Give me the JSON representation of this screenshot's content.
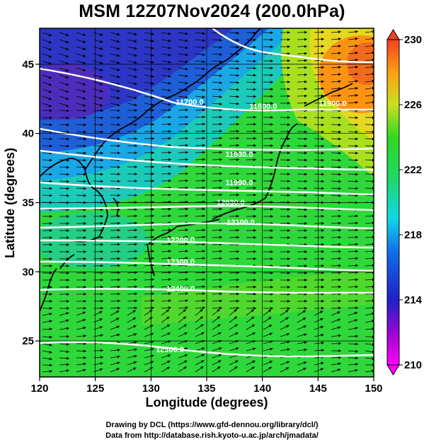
{
  "title": "MSM 12Z07Nov2024 (200.0hPa)",
  "xaxis": {
    "label": "Longitude (degrees)",
    "ticks": [
      120,
      125,
      130,
      135,
      140,
      145,
      150
    ],
    "range": [
      120,
      150
    ]
  },
  "yaxis": {
    "label": "Latitude  (degrees)",
    "ticks": [
      25,
      30,
      35,
      40,
      45
    ],
    "range": [
      22.4,
      47.6
    ]
  },
  "colorbar": {
    "ticks": [
      210,
      214,
      218,
      222,
      226,
      230
    ],
    "range": [
      210,
      230
    ]
  },
  "contours": [
    {
      "label": "11700.0"
    },
    {
      "label": "11800.0"
    },
    {
      "label": "11900.0"
    },
    {
      "label": "11930.0"
    },
    {
      "label": "11990.0"
    },
    {
      "label": "12030.0"
    },
    {
      "label": "12100.0"
    },
    {
      "label": "12200.0"
    },
    {
      "label": "12300.0"
    },
    {
      "label": "12400.0"
    },
    {
      "label": "12500.0"
    }
  ],
  "colors": {
    "cold": "#2838c8",
    "mid": "#19c8c8",
    "warm": "#24d52c",
    "hot": "#ff8a10"
  },
  "credits": {
    "line1": "Drawing by DCL (https://www.gfd-dennou.org/library/dcl/)",
    "line2": "Data from http://database.rish.kyoto-u.ac.jp/arch/jmadata/"
  }
}
